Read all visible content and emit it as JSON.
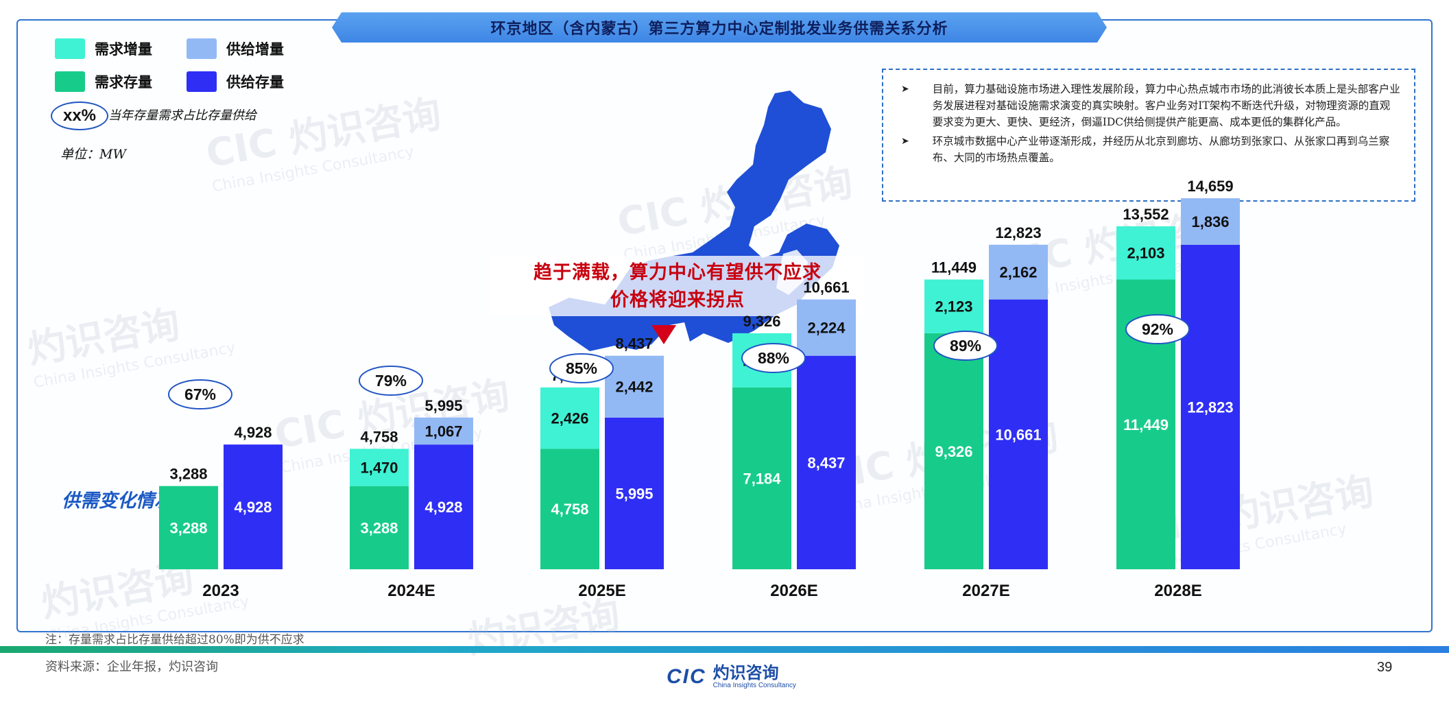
{
  "header": {
    "title": "环京地区（含内蒙古）第三方算力中心定制批发业务供需关系分析"
  },
  "legend": {
    "demand_increment": "需求增量",
    "supply_increment": "供给增量",
    "demand_stock": "需求存量",
    "supply_stock": "供给存量",
    "ratio_sample": "xx%",
    "ratio_desc": "当年存量需求占比存量供给",
    "unit": "单位：MW"
  },
  "colors": {
    "demand_increment": "#3ff2d4",
    "supply_increment": "#93b9f5",
    "demand_stock": "#17cc8a",
    "supply_stock": "#2f2ef5",
    "accent": "#2f74d0",
    "callout": "#c8000f"
  },
  "notes": [
    "目前，算力基础设施市场进入理性发展阶段，算力中心热点城市市场的此消彼长本质上是头部客户业务发展进程对基础设施需求演变的真实映射。客户业务对IT架构不断迭代升级，对物理资源的直观要求变为更大、更快、更经济，倒逼IDC供给侧提供产能更高、成本更低的集群化产品。",
    "环京城市数据中心产业带逐渐形成，并经历从北京到廊坊、从廊坊到张家口、从张家口再到乌兰察布、大同的市场热点覆盖。"
  ],
  "callout": {
    "line1": "趋于满载，算力中心有望供不应求",
    "line2": "价格将迎来拐点"
  },
  "section_label": "供需变化情况",
  "chart_data": {
    "type": "bar",
    "stacked": true,
    "categories": [
      "2023",
      "2024E",
      "2025E",
      "2026E",
      "2027E",
      "2028E"
    ],
    "series": [
      {
        "name": "需求存量",
        "group": "demand",
        "values": [
          3288,
          3288,
          4758,
          7184,
          9326,
          11449
        ]
      },
      {
        "name": "需求增量",
        "group": "demand",
        "values": [
          null,
          1470,
          2426,
          2142,
          2123,
          2103
        ]
      },
      {
        "name": "供给存量",
        "group": "supply",
        "values": [
          4928,
          4928,
          5995,
          8437,
          10661,
          12823
        ]
      },
      {
        "name": "供给增量",
        "group": "supply",
        "values": [
          null,
          1067,
          2442,
          2224,
          2162,
          1836
        ]
      }
    ],
    "demand_totals": [
      3288,
      4758,
      7184,
      9326,
      11449,
      13552
    ],
    "supply_totals": [
      4928,
      5995,
      8437,
      10661,
      12823,
      14659
    ],
    "ratio_labels": [
      "67%",
      "79%",
      "85%",
      "88%",
      "89%",
      "92%"
    ],
    "ylim": [
      0,
      15000
    ],
    "grid": false,
    "legend": "top-left"
  },
  "footer": {
    "note": "注：存量需求占比存量供给超过80%即为供不应求",
    "source": "资料来源：企业年报，灼识咨询",
    "page": "39",
    "logo_mark": "CIC",
    "logo_cn": "灼识咨询",
    "logo_en": "China Insights Consultancy"
  }
}
